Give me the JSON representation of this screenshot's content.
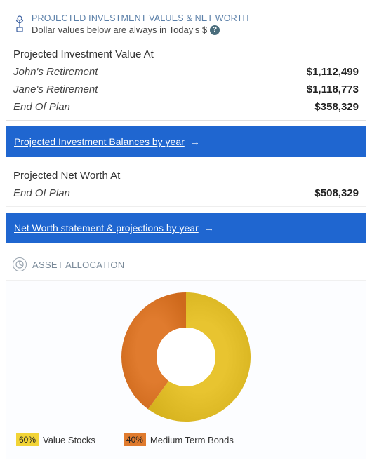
{
  "header": {
    "title": "PROJECTED INVESTMENT VALUES & NET WORTH",
    "subtitle": "Dollar values below are always in Today's $"
  },
  "projected_investment": {
    "section_title": "Projected Investment Value At",
    "rows": [
      {
        "label": "John's Retirement",
        "value": "$1,112,499"
      },
      {
        "label": "Jane's Retirement",
        "value": "$1,118,773"
      },
      {
        "label": "End Of Plan",
        "value": "$358,329"
      }
    ],
    "link_label": "Projected Investment Balances by year"
  },
  "net_worth": {
    "section_title": "Projected Net Worth At",
    "rows": [
      {
        "label": "End Of Plan",
        "value": "$508,329"
      }
    ],
    "link_label": "Net Worth statement & projections by year"
  },
  "allocation": {
    "title": "ASSET ALLOCATION",
    "chart": {
      "type": "donut",
      "background_color": "#fcfdff",
      "outer_radius": 92,
      "inner_radius": 42,
      "slices": [
        {
          "label": "Value Stocks",
          "percent": 60,
          "color": "#e8c430",
          "swatch_bg": "#f2d437"
        },
        {
          "label": "Medium Term Bonds",
          "percent": 40,
          "color": "#e07b2e",
          "swatch_bg": "#e07b2e"
        }
      ]
    }
  },
  "colors": {
    "link_bar": "#1f66d0",
    "header_title": "#5a7fa8"
  }
}
